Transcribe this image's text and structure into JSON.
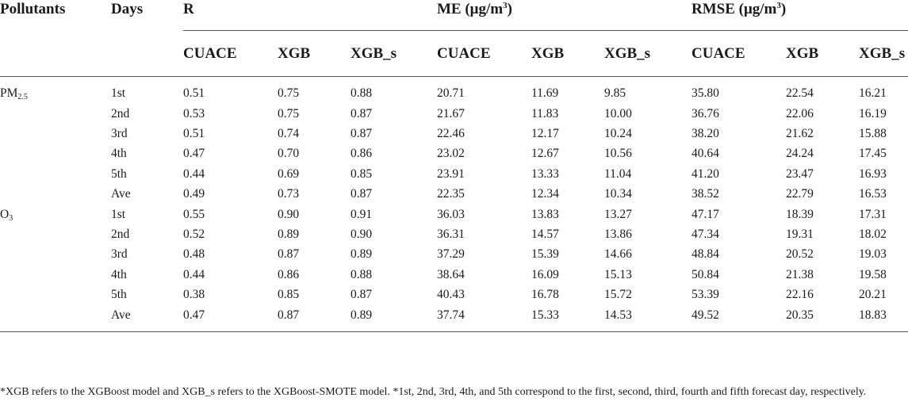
{
  "headers": {
    "pollutants": "Pollutants",
    "days": "Days",
    "groups": [
      {
        "label": "R",
        "unit": ""
      },
      {
        "label": "ME (μg/m",
        "unit": "3",
        "close": ")"
      },
      {
        "label": "RMSE (μg/m",
        "unit": "3",
        "close": ")"
      }
    ],
    "models": [
      "CUACE",
      "XGB",
      "XGB_s",
      "CUACE",
      "XGB",
      "XGB_s",
      "CUACE",
      "XGB",
      "XGB_s"
    ]
  },
  "pollutants": [
    {
      "name": "PM",
      "sub": "2.5",
      "rows": [
        {
          "day": "1st",
          "values": [
            "0.51",
            "0.75",
            "0.88",
            "20.71",
            "11.69",
            "9.85",
            "35.80",
            "22.54",
            "16.21"
          ]
        },
        {
          "day": "2nd",
          "values": [
            "0.53",
            "0.75",
            "0.87",
            "21.67",
            "11.83",
            "10.00",
            "36.76",
            "22.06",
            "16.19"
          ]
        },
        {
          "day": "3rd",
          "values": [
            "0.51",
            "0.74",
            "0.87",
            "22.46",
            "12.17",
            "10.24",
            "38.20",
            "21.62",
            "15.88"
          ]
        },
        {
          "day": "4th",
          "values": [
            "0.47",
            "0.70",
            "0.86",
            "23.02",
            "12.67",
            "10.56",
            "40.64",
            "24.24",
            "17.45"
          ]
        },
        {
          "day": "5th",
          "values": [
            "0.44",
            "0.69",
            "0.85",
            "23.91",
            "13.33",
            "11.04",
            "41.20",
            "23.47",
            "16.93"
          ]
        },
        {
          "day": "Ave",
          "values": [
            "0.49",
            "0.73",
            "0.87",
            "22.35",
            "12.34",
            "10.34",
            "38.52",
            "22.79",
            "16.53"
          ]
        }
      ]
    },
    {
      "name": "O",
      "sub": "3",
      "rows": [
        {
          "day": "1st",
          "values": [
            "0.55",
            "0.90",
            "0.91",
            "36.03",
            "13.83",
            "13.27",
            "47.17",
            "18.39",
            "17.31"
          ]
        },
        {
          "day": "2nd",
          "values": [
            "0.52",
            "0.89",
            "0.90",
            "36.31",
            "14.57",
            "13.86",
            "47.34",
            "19.31",
            "18.02"
          ]
        },
        {
          "day": "3rd",
          "values": [
            "0.48",
            "0.87",
            "0.89",
            "37.29",
            "15.39",
            "14.66",
            "48.84",
            "20.52",
            "19.03"
          ]
        },
        {
          "day": "4th",
          "values": [
            "0.44",
            "0.86",
            "0.88",
            "38.64",
            "16.09",
            "15.13",
            "50.84",
            "21.38",
            "19.58"
          ]
        },
        {
          "day": "5th",
          "values": [
            "0.38",
            "0.85",
            "0.87",
            "40.43",
            "16.78",
            "15.72",
            "53.39",
            "22.16",
            "20.21"
          ]
        },
        {
          "day": "Ave",
          "values": [
            "0.47",
            "0.87",
            "0.89",
            "37.74",
            "15.33",
            "14.53",
            "49.52",
            "20.35",
            "18.83"
          ]
        }
      ]
    }
  ],
  "footnote": "*XGB refers to the XGBoost model and XGB_s refers to the XGBoost-SMOTE model. *1st, 2nd, 3rd, 4th, and 5th correspond to the first, second, third, fourth and fifth forecast day, respectively."
}
